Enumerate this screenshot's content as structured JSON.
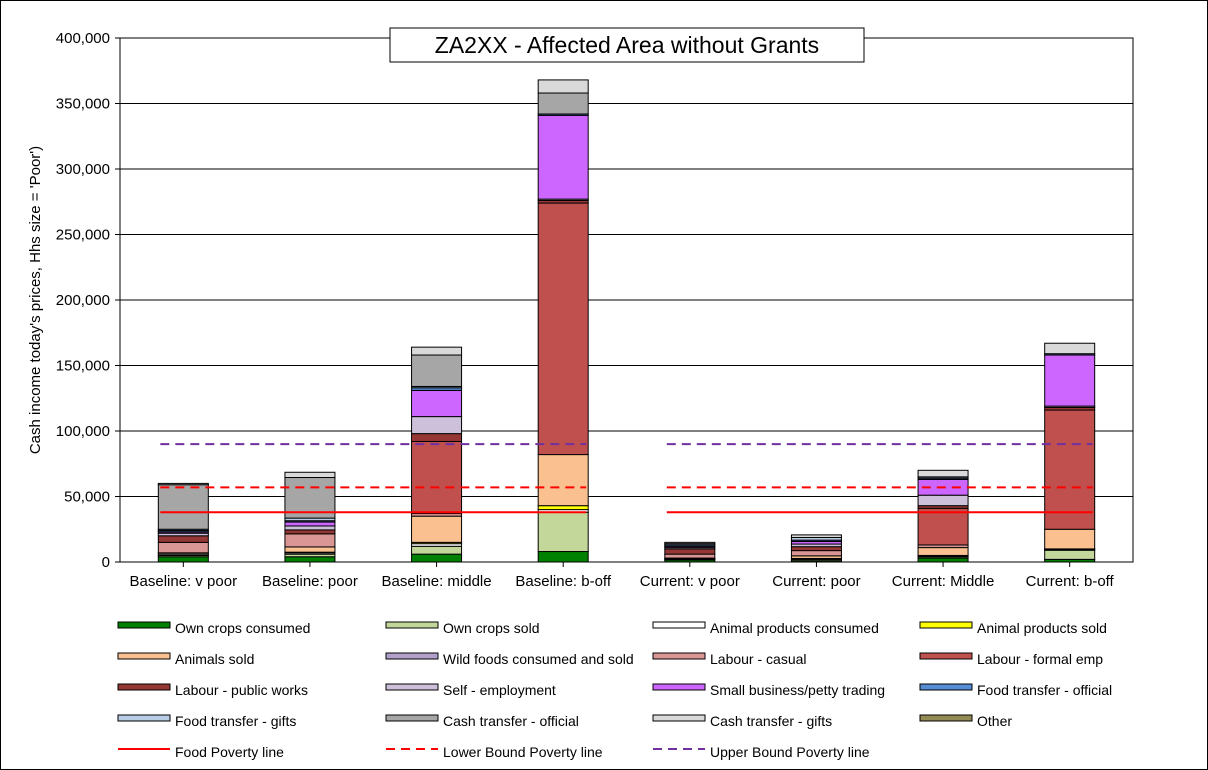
{
  "chart_data": {
    "type": "bar",
    "stacked": true,
    "title": "ZA2XX - Affected Area without Grants",
    "ylabel": "Cash income today's prices, Hhs size = 'Poor')",
    "xlabel": "",
    "ylim": [
      0,
      400000
    ],
    "yticks": [
      0,
      50000,
      100000,
      150000,
      200000,
      250000,
      300000,
      350000,
      400000
    ],
    "ytick_labels": [
      "0",
      "50,000",
      "100,000",
      "150,000",
      "200,000",
      "250,000",
      "300,000",
      "350,000",
      "400,000"
    ],
    "grid": true,
    "legend_position": "bottom",
    "categories": [
      "Baseline: v poor",
      "Baseline: poor",
      "Baseline: middle",
      "Baseline: b-off",
      "Current: v poor",
      "Current: poor",
      "Current: Middle",
      "Current: b-off"
    ],
    "series": [
      {
        "name": "Own crops consumed",
        "color": "#008000",
        "values": [
          4000,
          4000,
          6000,
          8000,
          1500,
          1000,
          3000,
          2000
        ]
      },
      {
        "name": "Own crops sold",
        "color": "#c4d79b",
        "values": [
          1000,
          2000,
          6000,
          30000,
          500,
          1000,
          1000,
          7000
        ]
      },
      {
        "name": "Animal products consumed",
        "color": "#ffffff",
        "values": [
          1000,
          1000,
          2000,
          2000,
          500,
          500,
          500,
          500
        ]
      },
      {
        "name": "Animal products sold",
        "color": "#ffff00",
        "values": [
          0,
          500,
          1000,
          3000,
          0,
          200,
          500,
          500
        ]
      },
      {
        "name": "Animals sold",
        "color": "#fac090",
        "values": [
          1000,
          4000,
          20000,
          39000,
          500,
          2000,
          6000,
          15000
        ]
      },
      {
        "name": "Wild foods consumed and sold",
        "color": "#b1a0c7",
        "values": [
          0,
          0,
          0,
          0,
          0,
          0,
          0,
          0
        ]
      },
      {
        "name": "Labour - casual",
        "color": "#da9694",
        "values": [
          8000,
          10000,
          2000,
          0,
          3000,
          4000,
          2000,
          0
        ]
      },
      {
        "name": "Labour - formal emp",
        "color": "#c0504d",
        "values": [
          0,
          0,
          55000,
          192000,
          0,
          0,
          28000,
          91000
        ]
      },
      {
        "name": "Labour - public works",
        "color": "#953735",
        "values": [
          5000,
          3000,
          6000,
          2000,
          4000,
          3000,
          2000,
          2000
        ]
      },
      {
        "name": "Self - employment",
        "color": "#ccc0da",
        "values": [
          2000,
          3000,
          13000,
          1000,
          1000,
          2000,
          8000,
          1000
        ]
      },
      {
        "name": "Small business/petty trading",
        "color": "#cc66ff",
        "values": [
          1000,
          3000,
          20000,
          64000,
          1000,
          2000,
          12000,
          39000
        ]
      },
      {
        "name": "Food transfer - official",
        "color": "#558ed5",
        "values": [
          1000,
          1000,
          2000,
          1000,
          1000,
          1000,
          1000,
          1000
        ]
      },
      {
        "name": "Food transfer - gifts",
        "color": "#b9cde5",
        "values": [
          1000,
          2000,
          1000,
          0,
          1000,
          2000,
          1000,
          0
        ]
      },
      {
        "name": "Cash transfer - official",
        "color": "#a6a6a6",
        "values": [
          34000,
          31000,
          24000,
          16000,
          0,
          0,
          0,
          0
        ]
      },
      {
        "name": "Cash transfer - gifts",
        "color": "#d9d9d9",
        "values": [
          1000,
          4000,
          6000,
          10000,
          1000,
          2000,
          5000,
          8000
        ]
      },
      {
        "name": "Other",
        "color": "#948a54",
        "values": [
          0,
          0,
          0,
          0,
          0,
          0,
          0,
          0
        ]
      }
    ],
    "lines": [
      {
        "name": "Food Poverty line",
        "color": "#ff0000",
        "style": "solid",
        "value": 38000
      },
      {
        "name": "Lower Bound Poverty line",
        "color": "#ff0000",
        "style": "dashed",
        "value": 57000
      },
      {
        "name": "Upper Bound Poverty line",
        "color": "#7030a0",
        "style": "dashed",
        "value": 90000
      }
    ]
  }
}
